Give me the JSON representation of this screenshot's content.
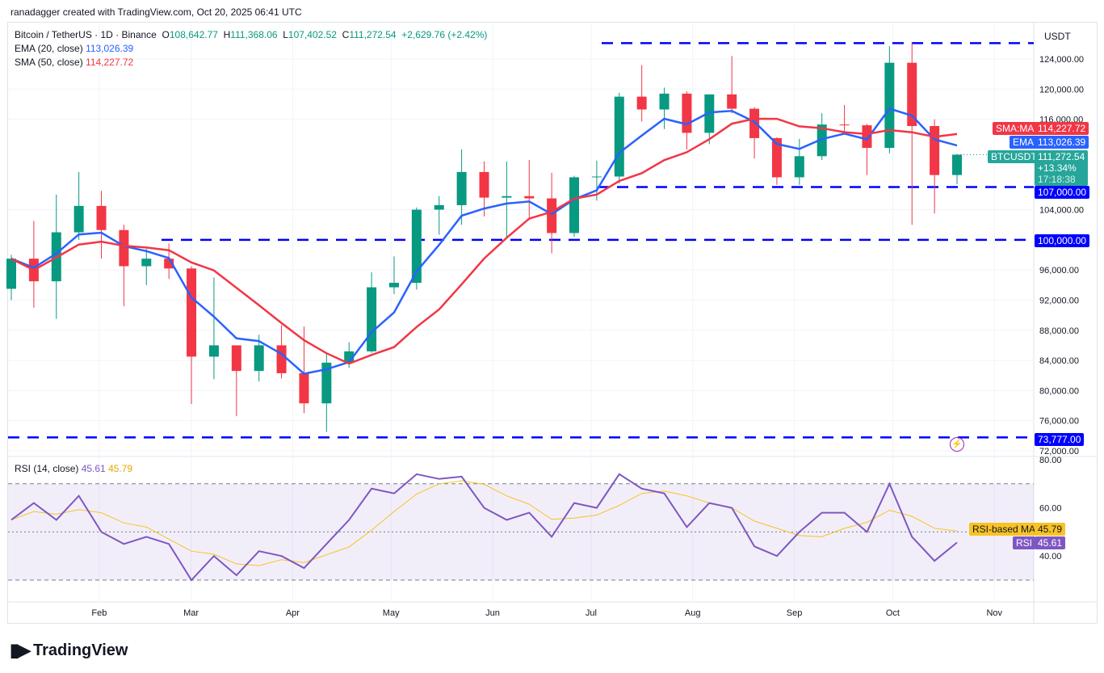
{
  "credit": "ranadagger created with TradingView.com, Oct 20, 2025 06:41 UTC",
  "legend": {
    "symbol": "Bitcoin / TetherUS · 1D · Binance",
    "o_label": "O",
    "o": "108,642.77",
    "h_label": "H",
    "h": "111,368.06",
    "l_label": "L",
    "l": "107,402.52",
    "c_label": "C",
    "c": "111,272.54",
    "change": "+2,629.76 (+2.42%)",
    "ema_label": "EMA (20, close)",
    "ema": "113,026.39",
    "sma_label": "SMA (50, close)",
    "sma": "114,227.72",
    "rsi_label": "RSI (14, close)",
    "rsi": "45.61",
    "rsi_ma": "45.79"
  },
  "price_axis": {
    "currency": "USDT",
    "ticks": [
      "124,000.00",
      "120,000.00",
      "116,000.00",
      "104,000.00",
      "96,000.00",
      "92,000.00",
      "88,000.00",
      "84,000.00",
      "80,000.00",
      "76,000.00",
      "72,000.00"
    ],
    "tick_values": [
      124000,
      120000,
      116000,
      104000,
      96000,
      92000,
      88000,
      84000,
      80000,
      76000,
      72000
    ]
  },
  "rsi_axis": {
    "ticks": [
      "80.00",
      "60.00",
      "40.00"
    ],
    "tick_values": [
      80,
      60,
      40
    ]
  },
  "time_axis": {
    "labels": [
      "Feb",
      "Mar",
      "Apr",
      "May",
      "Jun",
      "Jul",
      "Aug",
      "Sep",
      "Oct",
      "Nov"
    ],
    "label_days": [
      31,
      59,
      90,
      120,
      151,
      181,
      212,
      243,
      273,
      304
    ]
  },
  "price_labels": {
    "sma_tag": "SMA:MA",
    "sma_value": "114,227.72",
    "ema_tag": "EMA",
    "ema_value": "113,026.39",
    "sym_tag": "BTCUSDT",
    "last": "111,272.54",
    "pct": "+13.34%",
    "countdown": "17:18:38",
    "rsi_ma_tag": "RSI-based MA",
    "rsi_ma_value": "45.79",
    "rsi_tag": "RSI",
    "rsi_value": "45.61"
  },
  "levels": [
    {
      "value": 126100,
      "label": ""
    },
    {
      "value": 107000,
      "label": "107,000.00"
    },
    {
      "value": 100000,
      "label": "100,000.00"
    },
    {
      "value": 73777,
      "label": "73,777.00"
    }
  ],
  "colors": {
    "up": "#089981",
    "down": "#f23645",
    "ema": "#2962ff",
    "sma": "#f23645",
    "level": "#0000ff",
    "rsi": "#7e57c2",
    "rsi_ma": "#f7c325"
  },
  "chart_data": {
    "type": "candlestick",
    "interval_shown": "weekly-approx",
    "x_start": "2025-01-01",
    "ohlc": [
      [
        93500,
        98000,
        92000,
        97500
      ],
      [
        97500,
        102500,
        91000,
        94500
      ],
      [
        94500,
        106000,
        89500,
        101000
      ],
      [
        101000,
        109000,
        100000,
        104500
      ],
      [
        104500,
        106500,
        97500,
        101300
      ],
      [
        101300,
        102000,
        91200,
        96500
      ],
      [
        96500,
        98800,
        94000,
        97500
      ],
      [
        97500,
        99500,
        94800,
        96200
      ],
      [
        96200,
        96500,
        78200,
        84500
      ],
      [
        84500,
        95000,
        81500,
        86000
      ],
      [
        86000,
        86000,
        76600,
        82600
      ],
      [
        82600,
        87400,
        81200,
        86000
      ],
      [
        86000,
        88700,
        81600,
        82300
      ],
      [
        82300,
        88500,
        77000,
        78300
      ],
      [
        78300,
        85000,
        74500,
        83700
      ],
      [
        83700,
        86400,
        83000,
        85200
      ],
      [
        85200,
        95700,
        85000,
        93700
      ],
      [
        93700,
        97800,
        92800,
        94300
      ],
      [
        94300,
        104300,
        93400,
        104000
      ],
      [
        104000,
        105800,
        100700,
        104600
      ],
      [
        104600,
        112000,
        102000,
        109000
      ],
      [
        109000,
        110400,
        103100,
        105600
      ],
      [
        105600,
        110400,
        100400,
        105800
      ],
      [
        105800,
        110600,
        102600,
        105500
      ],
      [
        105500,
        108900,
        98200,
        100900
      ],
      [
        100900,
        108500,
        100400,
        108300
      ],
      [
        108300,
        110500,
        105200,
        108400
      ],
      [
        108400,
        119500,
        107500,
        119000
      ],
      [
        119000,
        123200,
        115700,
        117300
      ],
      [
        117300,
        120200,
        114700,
        119400
      ],
      [
        119400,
        119700,
        112000,
        114200
      ],
      [
        114200,
        119300,
        112700,
        119300
      ],
      [
        119300,
        124400,
        116800,
        117400
      ],
      [
        117400,
        117600,
        110800,
        113500
      ],
      [
        113500,
        113600,
        107300,
        108300
      ],
      [
        108300,
        113400,
        107300,
        111100
      ],
      [
        111100,
        116800,
        110600,
        115300
      ],
      [
        115300,
        117900,
        114400,
        115200
      ],
      [
        115200,
        115400,
        108600,
        112200
      ],
      [
        112200,
        125700,
        111500,
        123500
      ],
      [
        123500,
        126200,
        102000,
        115100
      ],
      [
        115100,
        116000,
        103500,
        108600
      ],
      [
        108600,
        111400,
        107400,
        111300
      ]
    ],
    "rsi": [
      55,
      62,
      55,
      65,
      50,
      45,
      48,
      45,
      30,
      40,
      32,
      42,
      40,
      35,
      45,
      55,
      68,
      66,
      74,
      72,
      73,
      60,
      55,
      58,
      48,
      62,
      60,
      74,
      68,
      66,
      52,
      62,
      60,
      44,
      40,
      50,
      58,
      58,
      50,
      70,
      48,
      38,
      45.6
    ],
    "rsi_bands": [
      70,
      30
    ],
    "ylim": [
      72000,
      126500
    ],
    "rsi_lim": [
      20,
      83
    ]
  }
}
